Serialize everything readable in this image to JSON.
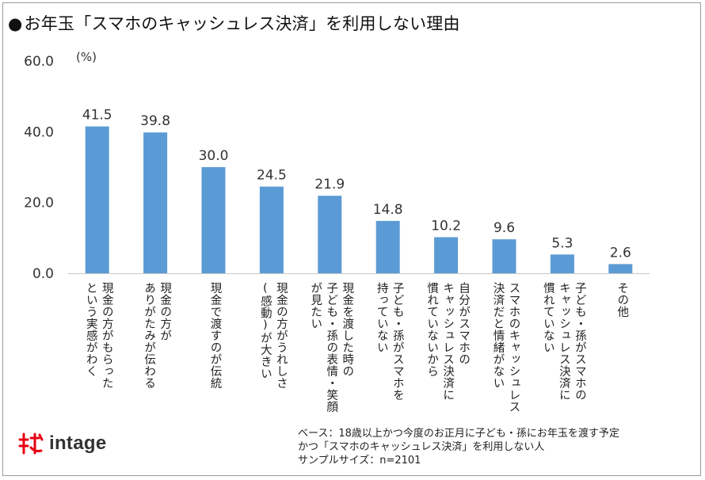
{
  "title": "お年玉「スマホのキャッシュレス決済」を利用しない理由",
  "title_bullet": "●",
  "brand": "intage",
  "note_lines": [
    "ベース：18歳以上かつ今度のお正月に子ども・孫にお年玉を渡す予定",
    "かつ「スマホのキャッシュレス決済」を利用しない人",
    "サンプルサイズ：n=2101"
  ],
  "colors": {
    "bar": "#5b9bd5",
    "brand_red": "#e60012"
  },
  "chart_data": {
    "type": "bar",
    "unit": "(%)",
    "ylim": [
      0,
      60
    ],
    "yticks": [
      "0.0",
      "20.0",
      "40.0",
      "60.0"
    ],
    "grid": false,
    "categories": [
      "現金の方がもらった\nという実感がわく",
      "現金の方が\nありがたみが伝わる",
      "現金で渡すのが伝統",
      "現金の方がうれしさ\n(感動)が大きい",
      "現金を渡した時の\n子ども・孫の表情・笑顔\nが見たい",
      "子ども・孫がスマホを\n持っていない",
      "自分がスマホの\nキャッシュレス決済に\n慣れていないから",
      "スマホのキャッシュレス\n決済だと情緒がない",
      "子ども・孫がスマホの\nキャッシュレス決済に\n慣れていない",
      "その他"
    ],
    "values": [
      41.5,
      39.8,
      30.0,
      24.5,
      21.9,
      14.8,
      10.2,
      9.6,
      5.3,
      2.6
    ],
    "value_labels": [
      "41.5",
      "39.8",
      "30.0",
      "24.5",
      "21.9",
      "14.8",
      "10.2",
      "9.6",
      "5.3",
      "2.6"
    ]
  }
}
